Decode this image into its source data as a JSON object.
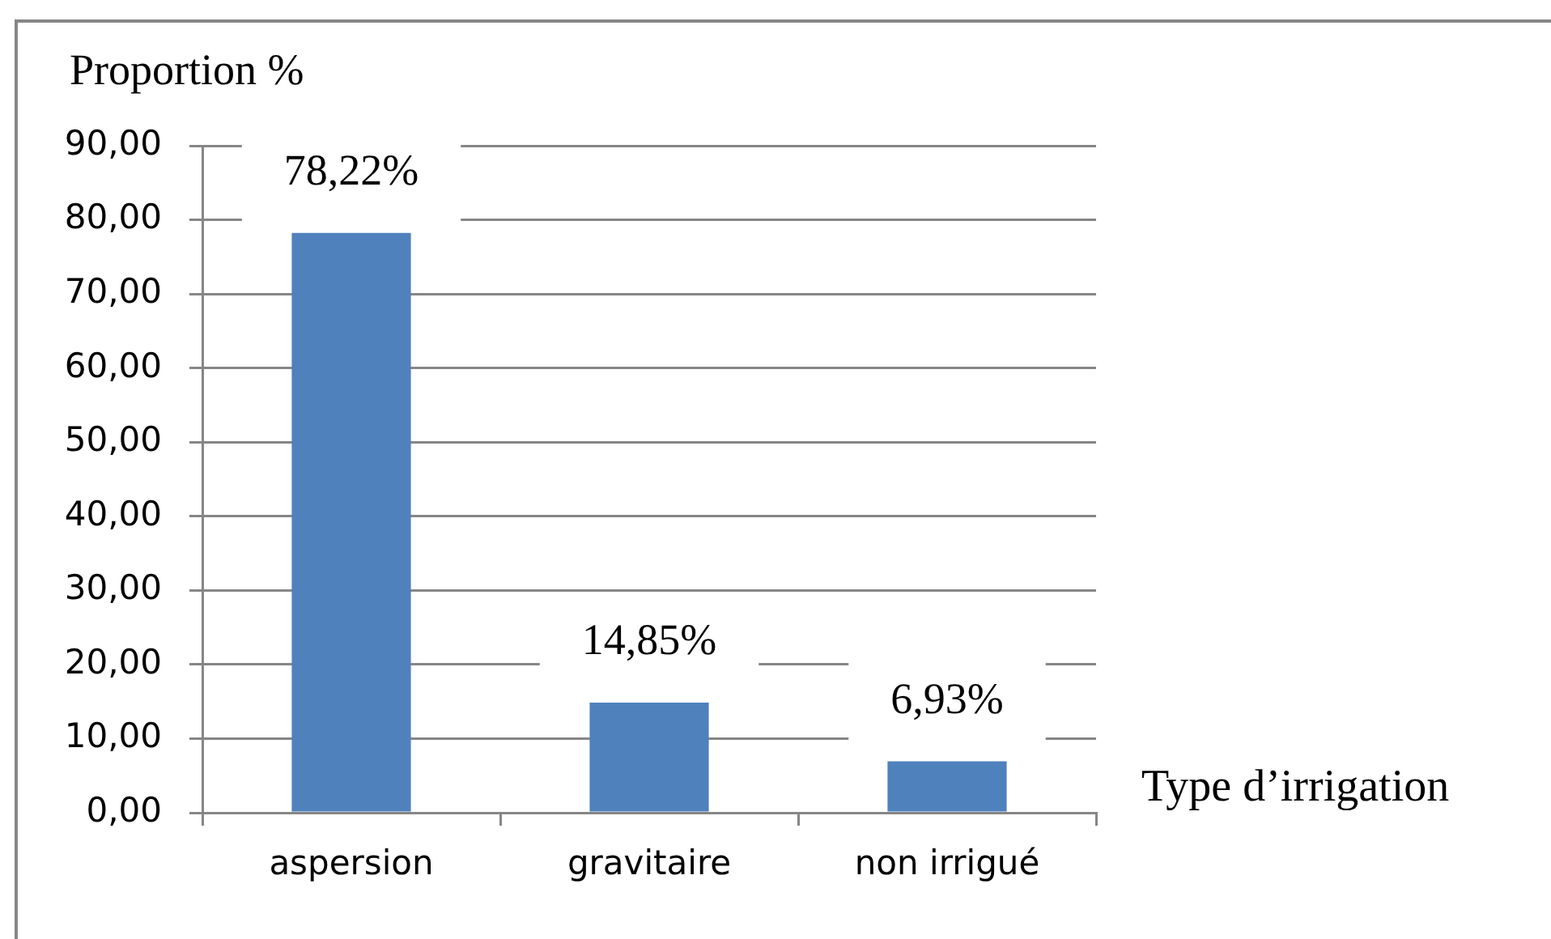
{
  "chart_data": {
    "type": "bar",
    "xlabel": "Type d’irrigation",
    "ylabel": "Proportion %",
    "categories": [
      "aspersion",
      "gravitaire",
      "non irrigué"
    ],
    "values": [
      78.22,
      14.85,
      6.93
    ],
    "color": "#4f81bd",
    "value_labels": [
      "78,22%",
      "14,85%",
      "6,93%"
    ],
    "ylim": [
      0,
      90
    ],
    "yticks": [
      {
        "value": 0,
        "label": "0,00"
      },
      {
        "value": 10,
        "label": "10,00"
      },
      {
        "value": 20,
        "label": "20,00"
      },
      {
        "value": 30,
        "label": "30,00"
      },
      {
        "value": 40,
        "label": "40,00"
      },
      {
        "value": 50,
        "label": "50,00"
      },
      {
        "value": 60,
        "label": "60,00"
      },
      {
        "value": 70,
        "label": "70,00"
      },
      {
        "value": 80,
        "label": "80,00"
      },
      {
        "value": 90,
        "label": "90,00"
      }
    ],
    "grid": "y"
  }
}
